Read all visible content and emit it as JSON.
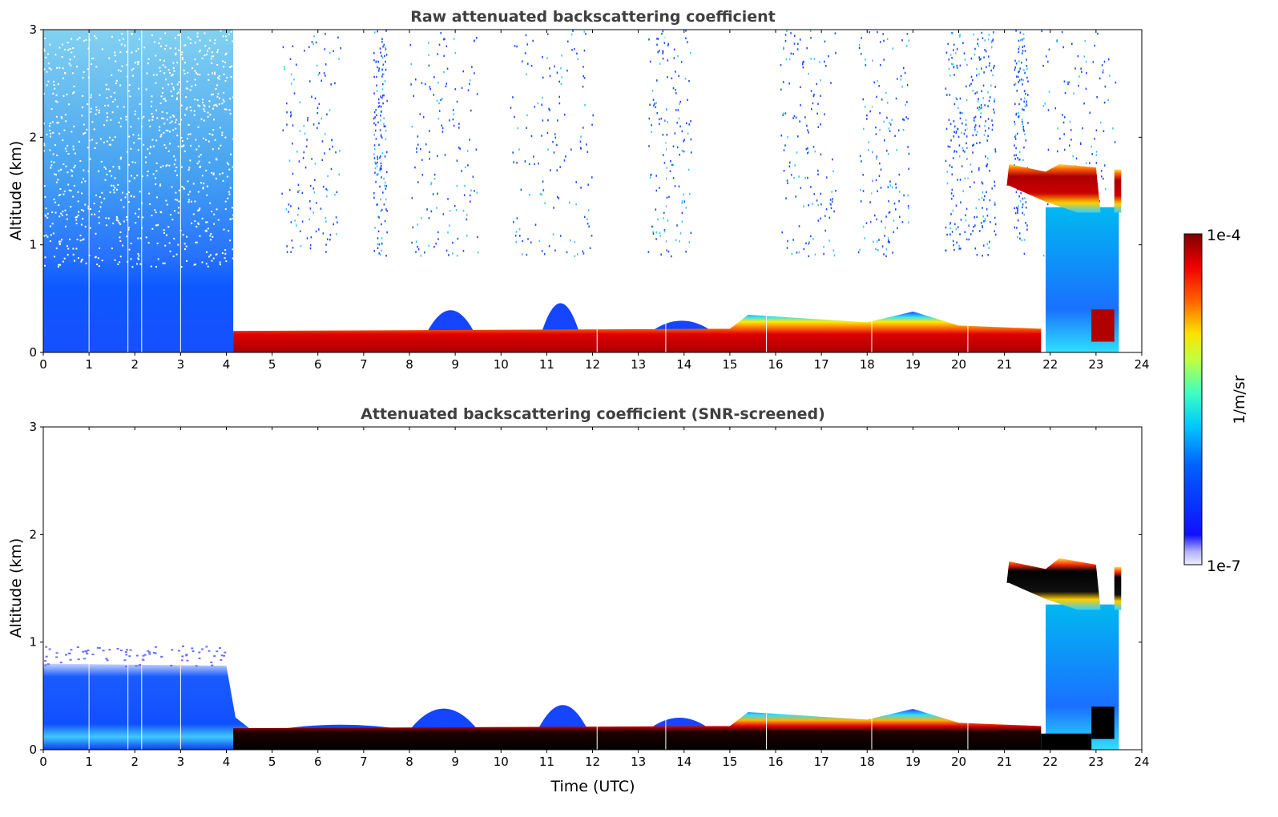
{
  "chart_data": [
    {
      "type": "heatmap",
      "title": "Raw attenuated backscattering coefficient",
      "xlabel": "",
      "ylabel": "Altitude (km)",
      "xlim": [
        0,
        24
      ],
      "ylim": [
        0,
        3
      ],
      "x_ticks": [
        "0",
        "1",
        "2",
        "3",
        "4",
        "5",
        "6",
        "7",
        "8",
        "9",
        "10",
        "11",
        "12",
        "13",
        "14",
        "15",
        "16",
        "17",
        "18",
        "19",
        "20",
        "21",
        "22",
        "23",
        "24"
      ],
      "y_ticks": [
        "0",
        "1",
        "2",
        "3"
      ],
      "features": [
        {
          "region": "dense noise layer",
          "t_start": 0.0,
          "t_end": 4.15,
          "alt_min": 0.0,
          "alt_max": 3.0,
          "level": "low"
        },
        {
          "region": "aerosol boundary layer",
          "t_start": 4.15,
          "t_end": 23.5,
          "alt_min": 0.0,
          "alt_max": 0.3,
          "level": "high"
        },
        {
          "region": "cloud layer",
          "t_start": 21.0,
          "t_end": 23.5,
          "alt_min": 1.3,
          "alt_max": 1.75,
          "level": "high"
        }
      ]
    },
    {
      "type": "heatmap",
      "title": "Attenuated backscattering coefficient (SNR-screened)",
      "xlabel": "Time (UTC)",
      "ylabel": "Altitude (km)",
      "xlim": [
        0,
        24
      ],
      "ylim": [
        0,
        3
      ],
      "x_ticks": [
        "0",
        "1",
        "2",
        "3",
        "4",
        "5",
        "6",
        "7",
        "8",
        "9",
        "10",
        "11",
        "12",
        "13",
        "14",
        "15",
        "16",
        "17",
        "18",
        "19",
        "20",
        "21",
        "22",
        "23",
        "24"
      ],
      "y_ticks": [
        "0",
        "1",
        "2",
        "3"
      ],
      "features": [
        {
          "region": "screened boundary layer",
          "t_start": 0.0,
          "t_end": 4.15,
          "alt_min": 0.0,
          "alt_max": 0.9,
          "level": "low"
        },
        {
          "region": "aerosol boundary layer",
          "t_start": 4.15,
          "t_end": 23.5,
          "alt_min": 0.0,
          "alt_max": 0.3,
          "level": "high"
        },
        {
          "region": "cloud layer",
          "t_start": 21.0,
          "t_end": 23.5,
          "alt_min": 1.3,
          "alt_max": 1.75,
          "level": "high"
        }
      ]
    }
  ],
  "colorbar": {
    "label": "1/m/sr",
    "max_label": "1e-4",
    "min_label": "1e-7",
    "scale": "log",
    "colormap": "jet",
    "colors": [
      "#e6e6fa",
      "#0000ff",
      "#00c8ff",
      "#50ffb0",
      "#ffff00",
      "#ff6000",
      "#ff0000",
      "#800000"
    ]
  }
}
